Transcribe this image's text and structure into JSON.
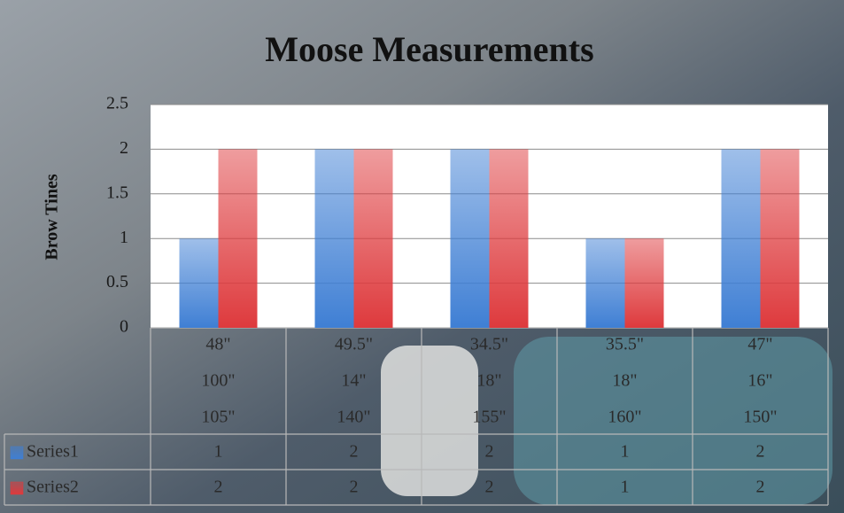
{
  "chart_data": {
    "type": "bar",
    "title": "Moose Measurements",
    "y_label": "Brow Tines",
    "categories": [
      [
        "48\"",
        "100\"",
        "105\""
      ],
      [
        "49.5\"",
        "14\"",
        "140\""
      ],
      [
        "34.5\"",
        "18\"",
        "155\""
      ],
      [
        "35.5\"",
        "18\"",
        "160\""
      ],
      [
        "47\"",
        "16\"",
        "150\""
      ]
    ],
    "series": [
      {
        "name": "Series1",
        "color": "#3f7fd4",
        "values": [
          1,
          2,
          2,
          1,
          2
        ]
      },
      {
        "name": "Series2",
        "color": "#de3a3d",
        "values": [
          2,
          2,
          2,
          1,
          2
        ]
      }
    ],
    "ylim": [
      0,
      2.5
    ],
    "yticks": [
      0,
      0.5,
      1,
      1.5,
      2,
      2.5
    ],
    "grid": true
  }
}
